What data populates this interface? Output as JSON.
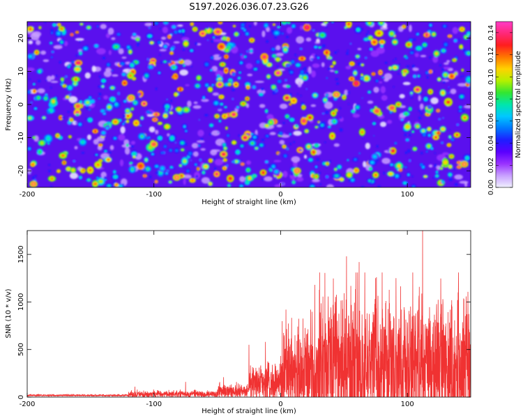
{
  "title": "S197.2026.036.07.23.G26",
  "chart_data": [
    {
      "type": "heatmap",
      "xlabel": "Height of straight line (km)",
      "ylabel": "Frequency (Hz)",
      "xlim": [
        -200,
        150
      ],
      "ylim": [
        -25,
        25
      ],
      "xticks": [
        -200,
        -100,
        0,
        100
      ],
      "yticks": [
        -20,
        -10,
        0,
        10,
        20
      ],
      "colorbar": {
        "label": "Normalized spectral amplitude",
        "range": [
          0,
          0.15
        ],
        "ticks": [
          "0.00",
          "0.02",
          "0.04",
          "0.06",
          "0.08",
          "0.10",
          "0.12",
          "0.14"
        ],
        "colors": [
          "#f0f0ff",
          "#c8a0ff",
          "#9932ff",
          "#5a00ff",
          "#1e1eff",
          "#0078ff",
          "#00c8ff",
          "#00e6aa",
          "#32e632",
          "#b4f000",
          "#ffd200",
          "#ff7800",
          "#ff1e1e",
          "#ff2878",
          "#ff3cc8"
        ]
      },
      "hot_spots": [
        {
          "x": -48,
          "y": 6,
          "value": 0.14
        },
        {
          "x": -2,
          "y": 9.5,
          "value": 0.14
        },
        {
          "x": -37,
          "y": -3,
          "value": 0.13
        },
        {
          "x": -28,
          "y": -10,
          "value": 0.12
        },
        {
          "x": 5,
          "y": 2,
          "value": 0.12
        },
        {
          "x": 108,
          "y": 4.5,
          "value": 0.13
        },
        {
          "x": -45,
          "y": -15,
          "value": 0.12
        },
        {
          "x": -100,
          "y": -12,
          "value": 0.11
        },
        {
          "x": 88,
          "y": -1,
          "value": 0.11
        },
        {
          "x": 76,
          "y": -2,
          "value": 0.11
        },
        {
          "x": -160,
          "y": -0.5,
          "value": 0.11
        },
        {
          "x": -195,
          "y": -24,
          "value": 0.1
        },
        {
          "x": -82,
          "y": -22,
          "value": 0.1
        },
        {
          "x": 13,
          "y": -20,
          "value": 0.1
        },
        {
          "x": -118,
          "y": 2,
          "value": 0.1
        },
        {
          "x": 145,
          "y": -18,
          "value": 0.1
        },
        {
          "x": 44,
          "y": 3,
          "value": 0.1
        }
      ]
    },
    {
      "type": "line",
      "xlabel": "Height of straight line (km)",
      "ylabel": "SNR (10 * v/v)",
      "xlim": [
        -200,
        150
      ],
      "ylim": [
        0,
        1750
      ],
      "xticks": [
        -200,
        -100,
        0,
        100
      ],
      "yticks": [
        0,
        500,
        1000,
        1500
      ],
      "series": [
        {
          "name": "SNR",
          "color": "#f03232",
          "segments": [
            {
              "x_start": -200,
              "x_end": -120,
              "mean": 18,
              "spread": 12
            },
            {
              "x_start": -120,
              "x_end": -50,
              "mean": 30,
              "spread": 45
            },
            {
              "x_start": -50,
              "x_end": -25,
              "mean": 60,
              "spread": 90
            },
            {
              "x_start": -25,
              "x_end": 0,
              "mean": 140,
              "spread": 260
            },
            {
              "x_start": 0,
              "x_end": 30,
              "mean": 260,
              "spread": 600
            },
            {
              "x_start": 30,
              "x_end": 150,
              "mean": 320,
              "spread": 900
            }
          ],
          "peaks": [
            {
              "x": -115,
              "y": 110
            },
            {
              "x": -75,
              "y": 160
            },
            {
              "x": -45,
              "y": 210
            },
            {
              "x": -25,
              "y": 550
            },
            {
              "x": -12,
              "y": 580
            },
            {
              "x": 27,
              "y": 1180
            },
            {
              "x": 52,
              "y": 1480
            },
            {
              "x": 62,
              "y": 1420
            },
            {
              "x": 75,
              "y": 1250
            },
            {
              "x": 91,
              "y": 1250
            },
            {
              "x": 112,
              "y": 1750
            },
            {
              "x": 128,
              "y": 1030
            },
            {
              "x": 140,
              "y": 1100
            },
            {
              "x": 147,
              "y": 870
            }
          ]
        }
      ]
    }
  ]
}
